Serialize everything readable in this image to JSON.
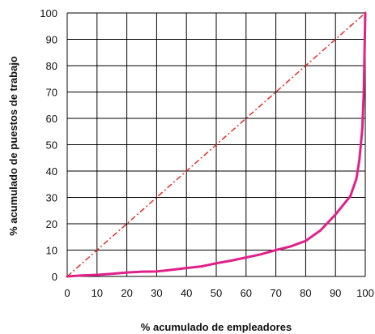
{
  "chart_data": {
    "type": "line",
    "title": "",
    "xlabel": "% acumulado de empleadores",
    "ylabel": "% acumulado de puestos de trabajo",
    "xlim": [
      0,
      100
    ],
    "ylim": [
      0,
      100
    ],
    "x_ticks": [
      "0",
      "10",
      "20",
      "30",
      "40",
      "50",
      "60",
      "70",
      "80",
      "90",
      "100"
    ],
    "y_ticks": [
      "0",
      "10",
      "20",
      "30",
      "40",
      "50",
      "60",
      "70",
      "80",
      "90",
      "100"
    ],
    "grid": true,
    "legend": "none",
    "colors": {
      "series": "#e0218a",
      "equality": "#e02020",
      "grid": "#000000"
    },
    "series": [
      {
        "style": "solid",
        "points": [
          [
            0,
            0
          ],
          [
            5,
            0.4
          ],
          [
            10,
            0.6
          ],
          [
            15,
            1.0
          ],
          [
            20,
            1.5
          ],
          [
            25,
            1.8
          ],
          [
            30,
            1.9
          ],
          [
            35,
            2.5
          ],
          [
            40,
            3.2
          ],
          [
            45,
            3.8
          ],
          [
            50,
            5.0
          ],
          [
            55,
            6.0
          ],
          [
            60,
            7.2
          ],
          [
            65,
            8.4
          ],
          [
            70,
            10.0
          ],
          [
            75,
            11.4
          ],
          [
            80,
            13.5
          ],
          [
            85,
            17.5
          ],
          [
            90,
            23.5
          ],
          [
            95,
            30.5
          ],
          [
            97,
            37.0
          ],
          [
            98,
            44.0
          ],
          [
            99,
            56.0
          ],
          [
            99.5,
            70.0
          ],
          [
            100,
            100
          ]
        ]
      },
      {
        "style": "dash-dot",
        "points": [
          [
            0,
            0
          ],
          [
            100,
            100
          ]
        ]
      }
    ]
  }
}
